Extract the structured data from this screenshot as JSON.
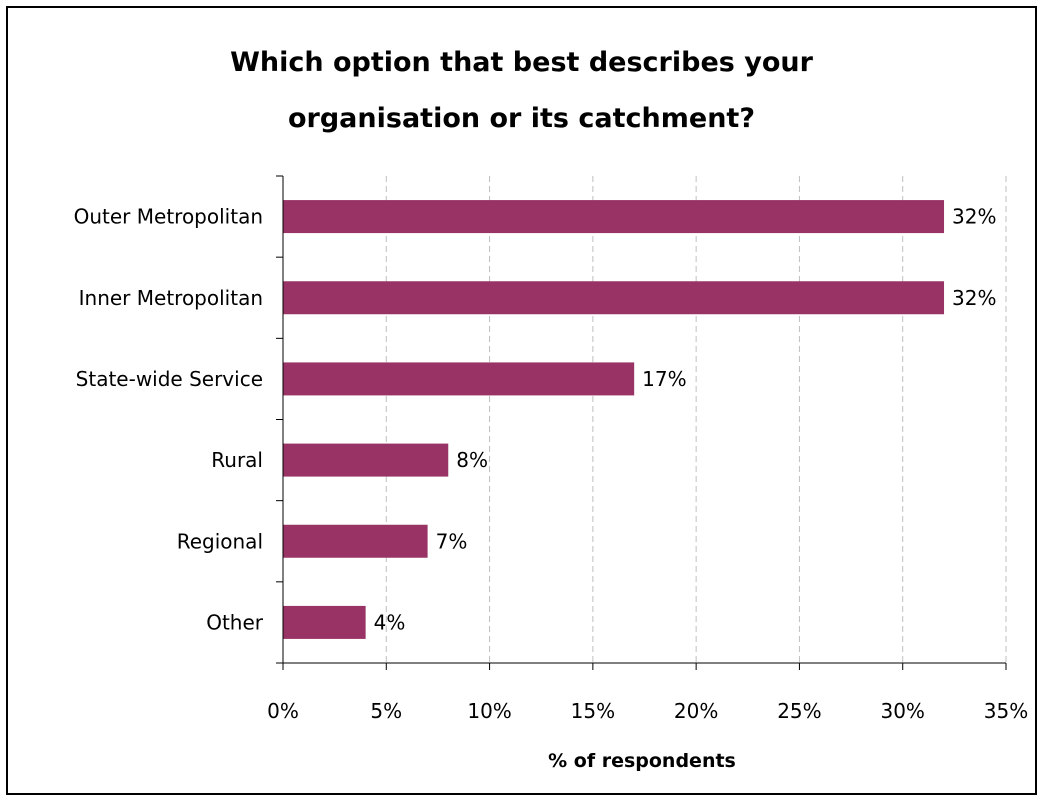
{
  "chart_data": {
    "type": "bar",
    "orientation": "horizontal",
    "title": "Which option that best describes your organisation or its catchment?",
    "title_lines": [
      "Which option that best describes your",
      "organisation or its catchment?"
    ],
    "categories": [
      "Outer Metropolitan",
      "Inner Metropolitan",
      "State-wide Service",
      "Rural",
      "Regional",
      "Other"
    ],
    "values": [
      32,
      32,
      17,
      8,
      7,
      4
    ],
    "value_labels": [
      "32%",
      "32%",
      "17%",
      "8%",
      "7%",
      "4%"
    ],
    "xlabel": "% of respondents",
    "ylabel": "",
    "xlim": [
      0,
      35
    ],
    "x_ticks": [
      0,
      5,
      10,
      15,
      20,
      25,
      30,
      35
    ],
    "x_tick_labels": [
      "0%",
      "5%",
      "10%",
      "15%",
      "20%",
      "25%",
      "30%",
      "35%"
    ],
    "grid": "vertical dashed",
    "legend": "none",
    "bar_color": "#993366",
    "gridline_color": "#bfbfbf"
  }
}
